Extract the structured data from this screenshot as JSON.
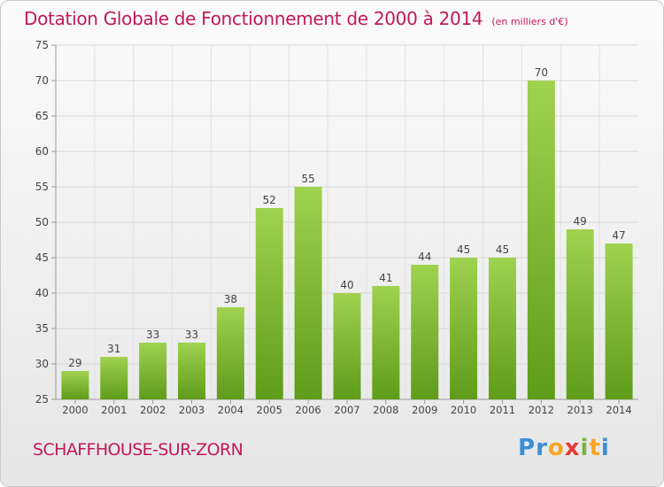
{
  "title": "Dotation Globale de Fonctionnement de 2000 à 2014",
  "unit_note": "(en milliers d'€)",
  "commune": "SCHAFFHOUSE-SUR-ZORN",
  "logo": {
    "text": "Proxiti",
    "letters": [
      "P",
      "r",
      "o",
      "x",
      "i",
      "t",
      "i"
    ],
    "colors": [
      "#3a8fd6",
      "#3a8fd6",
      "#f5a623",
      "#e53935",
      "#7cb342",
      "#f5a623",
      "#3a8fd6"
    ]
  },
  "colors": {
    "accent": "#c2185b",
    "bar_top": "#9fd24f",
    "bar_bottom": "#5e9c1a",
    "axis": "#999999"
  },
  "chart_data": {
    "type": "bar",
    "title": "Dotation Globale de Fonctionnement de 2000 à 2014",
    "subtitle": "(en milliers d'€)",
    "xlabel": "",
    "ylabel": "",
    "categories": [
      "2000",
      "2001",
      "2002",
      "2003",
      "2004",
      "2005",
      "2006",
      "2007",
      "2008",
      "2009",
      "2010",
      "2011",
      "2012",
      "2013",
      "2014"
    ],
    "values": [
      29,
      31,
      33,
      33,
      38,
      52,
      55,
      40,
      41,
      44,
      45,
      45,
      70,
      49,
      47
    ],
    "ylim": [
      25,
      75
    ],
    "yticks": [
      25,
      30,
      35,
      40,
      45,
      50,
      55,
      60,
      65,
      70,
      75
    ],
    "grid": true,
    "legend": "none"
  }
}
